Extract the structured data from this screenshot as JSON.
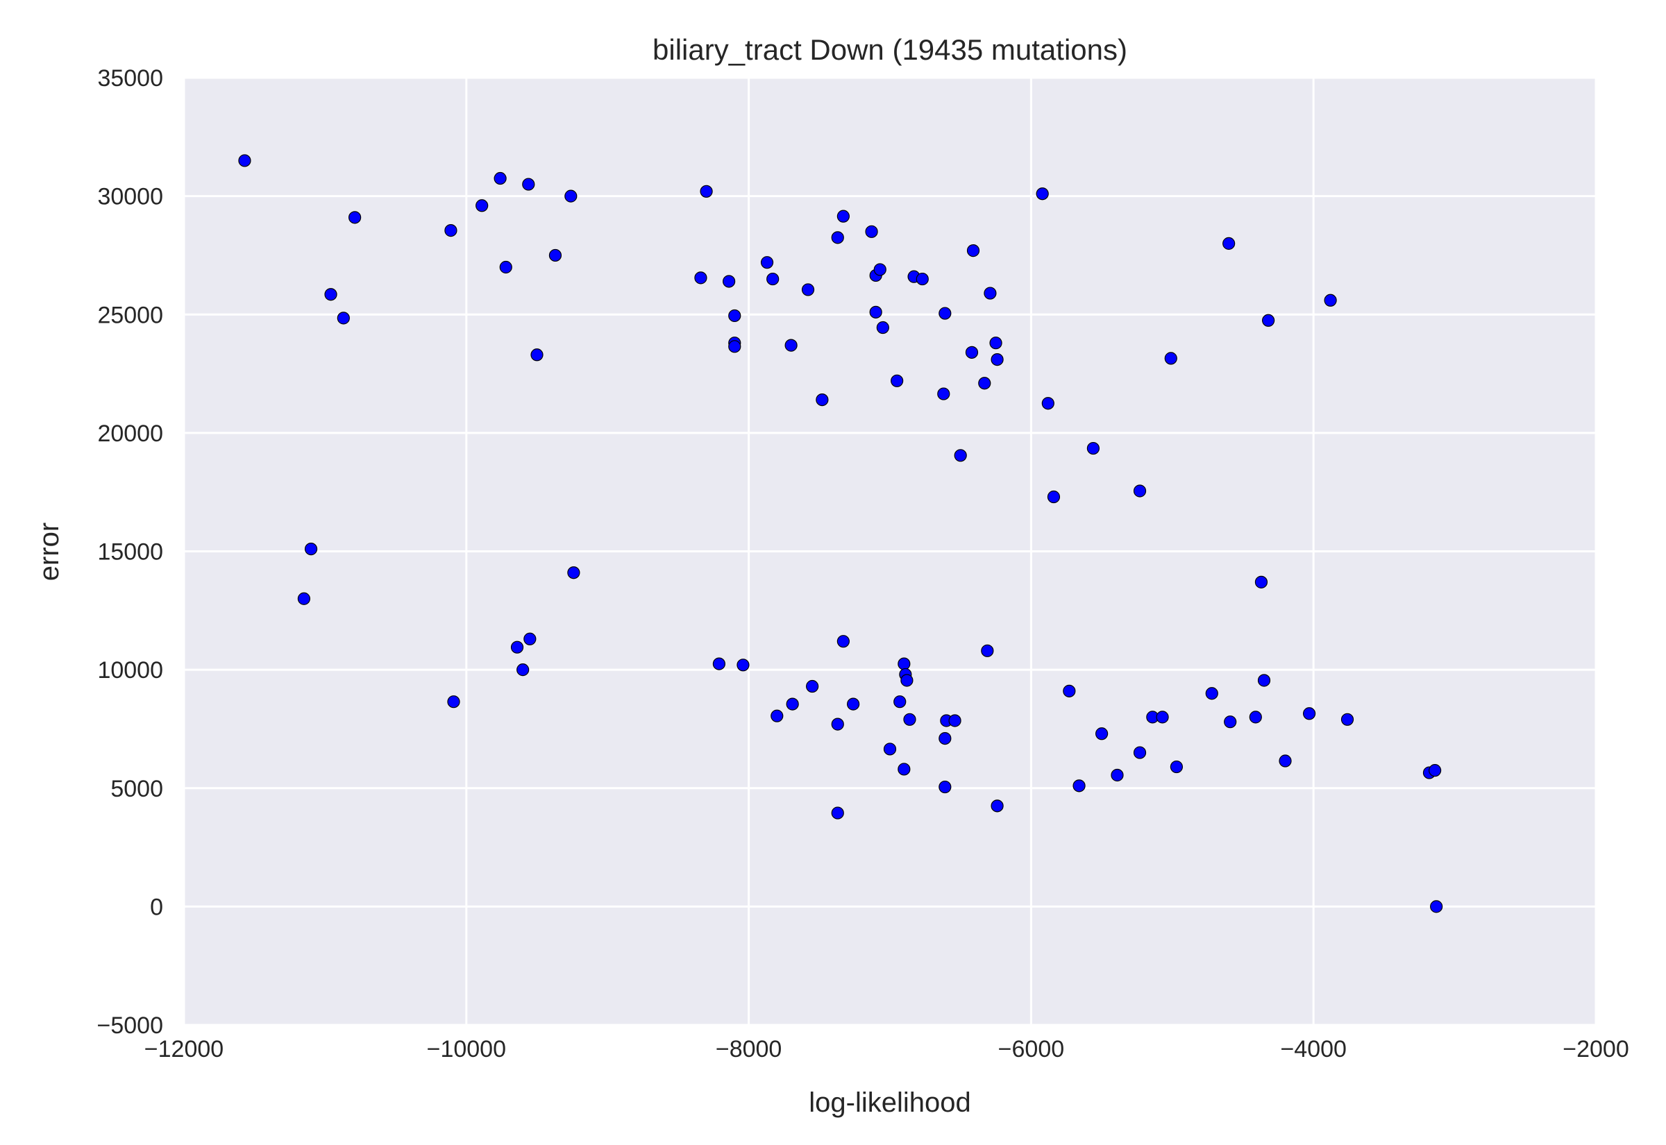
{
  "chart_data": {
    "type": "scatter",
    "title": "biliary_tract Down (19435 mutations)",
    "xlabel": "log-likelihood",
    "ylabel": "error",
    "xlim": [
      -12000,
      -2000
    ],
    "ylim": [
      -5000,
      35000
    ],
    "xticks": [
      -12000,
      -10000,
      -8000,
      -6000,
      -4000,
      -2000
    ],
    "yticks": [
      -5000,
      0,
      5000,
      10000,
      15000,
      20000,
      25000,
      30000,
      35000
    ],
    "xtick_labels": [
      "−12000",
      "−10000",
      "−8000",
      "−6000",
      "−4000",
      "−2000"
    ],
    "ytick_labels": [
      "−5000",
      "0",
      "5000",
      "10000",
      "15000",
      "20000",
      "25000",
      "30000",
      "35000"
    ],
    "grid": true,
    "colors": {
      "background": "#eaeaf2",
      "grid": "#ffffff",
      "point": "#0000ff",
      "edge": "#000000"
    },
    "series": [
      {
        "points": [
          [
            -11570,
            31500
          ],
          [
            -10960,
            25850
          ],
          [
            -10870,
            24850
          ],
          [
            -10790,
            29100
          ],
          [
            -11100,
            15100
          ],
          [
            -11150,
            13000
          ],
          [
            -10110,
            28550
          ],
          [
            -9890,
            29600
          ],
          [
            -9760,
            30750
          ],
          [
            -9720,
            27000
          ],
          [
            -9560,
            30500
          ],
          [
            -9260,
            30000
          ],
          [
            -9370,
            27500
          ],
          [
            -9500,
            23300
          ],
          [
            -10090,
            8650
          ],
          [
            -9640,
            10950
          ],
          [
            -9600,
            10000
          ],
          [
            -9550,
            11300
          ],
          [
            -9240,
            14100
          ],
          [
            -8340,
            26550
          ],
          [
            -8300,
            30200
          ],
          [
            -8140,
            26400
          ],
          [
            -8100,
            24950
          ],
          [
            -8100,
            23800
          ],
          [
            -8100,
            23650
          ],
          [
            -8210,
            10250
          ],
          [
            -8040,
            10200
          ],
          [
            -7870,
            27200
          ],
          [
            -7830,
            26500
          ],
          [
            -7580,
            26050
          ],
          [
            -7700,
            23700
          ],
          [
            -7480,
            21400
          ],
          [
            -7800,
            8050
          ],
          [
            -7690,
            8550
          ],
          [
            -7550,
            9300
          ],
          [
            -7370,
            28250
          ],
          [
            -7330,
            29150
          ],
          [
            -7130,
            28500
          ],
          [
            -7100,
            26650
          ],
          [
            -7070,
            26900
          ],
          [
            -7100,
            25100
          ],
          [
            -7050,
            24450
          ],
          [
            -6950,
            22200
          ],
          [
            -6830,
            26600
          ],
          [
            -6770,
            26500
          ],
          [
            -6610,
            25050
          ],
          [
            -6410,
            27700
          ],
          [
            -6290,
            25900
          ],
          [
            -6250,
            23800
          ],
          [
            -6240,
            23100
          ],
          [
            -6420,
            23400
          ],
          [
            -6330,
            22100
          ],
          [
            -6620,
            21650
          ],
          [
            -6500,
            19050
          ],
          [
            -7330,
            11200
          ],
          [
            -7260,
            8550
          ],
          [
            -7370,
            7700
          ],
          [
            -7370,
            3950
          ],
          [
            -7000,
            6650
          ],
          [
            -6930,
            8650
          ],
          [
            -6900,
            10250
          ],
          [
            -6890,
            9800
          ],
          [
            -6880,
            9550
          ],
          [
            -6860,
            7900
          ],
          [
            -6900,
            5800
          ],
          [
            -6600,
            7850
          ],
          [
            -6540,
            7850
          ],
          [
            -6610,
            7100
          ],
          [
            -6610,
            5050
          ],
          [
            -6310,
            10800
          ],
          [
            -6240,
            4250
          ],
          [
            -5920,
            30100
          ],
          [
            -5880,
            21250
          ],
          [
            -5840,
            17300
          ],
          [
            -5560,
            19350
          ],
          [
            -5730,
            9100
          ],
          [
            -5660,
            5100
          ],
          [
            -5500,
            7300
          ],
          [
            -5390,
            5550
          ],
          [
            -5230,
            17550
          ],
          [
            -5230,
            6500
          ],
          [
            -5140,
            8000
          ],
          [
            -5070,
            8000
          ],
          [
            -5010,
            23150
          ],
          [
            -4970,
            5900
          ],
          [
            -4720,
            9000
          ],
          [
            -4600,
            28000
          ],
          [
            -4590,
            7800
          ],
          [
            -4410,
            8000
          ],
          [
            -4370,
            13700
          ],
          [
            -4350,
            9550
          ],
          [
            -4320,
            24750
          ],
          [
            -4200,
            6150
          ],
          [
            -4030,
            8150
          ],
          [
            -3880,
            25600
          ],
          [
            -3760,
            7900
          ],
          [
            -3180,
            5650
          ],
          [
            -3140,
            5750
          ],
          [
            -3130,
            0
          ]
        ]
      }
    ]
  }
}
